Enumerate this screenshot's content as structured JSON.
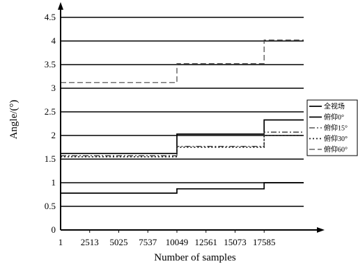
{
  "chart_data": {
    "type": "line",
    "xlabel": "Number of samples",
    "ylabel": "Angle/(°)",
    "xlim": [
      1,
      21000
    ],
    "ylim": [
      0,
      4.5
    ],
    "x_ticks": [
      1,
      2513,
      5025,
      7537,
      10049,
      12561,
      15073,
      17585
    ],
    "x_tick_labels": [
      "1",
      "2513",
      "5025",
      "7537",
      "10049",
      "12561",
      "15073",
      "17585"
    ],
    "y_ticks": [
      0,
      0.5,
      1,
      1.5,
      2,
      2.5,
      3,
      3.5,
      4,
      4.5
    ],
    "y_tick_labels": [
      "0",
      "0.5",
      "1",
      "1.5",
      "2",
      "2.5",
      "3",
      "3.5",
      "4",
      "4.5"
    ],
    "grid": "horizontal",
    "legend_position": "right",
    "series": [
      {
        "name": "全视场",
        "style": "solid",
        "x": [
          1,
          10049,
          10049,
          17585,
          17585,
          21000
        ],
        "y": [
          0.78,
          0.78,
          0.87,
          0.87,
          1.0,
          1.0
        ]
      },
      {
        "name": "俯仰0°",
        "style": "solid",
        "x": [
          1,
          10049,
          10049,
          17585,
          17585,
          21000
        ],
        "y": [
          1.62,
          1.62,
          2.03,
          2.03,
          2.33,
          2.33
        ]
      },
      {
        "name": "俯仰15°",
        "style": "dashdot",
        "x": [
          1,
          10049,
          10049,
          17585,
          17585,
          21000
        ],
        "y": [
          1.57,
          1.57,
          1.77,
          1.77,
          2.07,
          2.07
        ]
      },
      {
        "name": "俯仰30°",
        "style": "dotted",
        "x": [
          1,
          10049,
          10049,
          17585,
          17585,
          21000
        ],
        "y": [
          1.55,
          1.55,
          1.75,
          1.75,
          2.0,
          2.0
        ]
      },
      {
        "name": "俯仰60°",
        "style": "dashed",
        "x": [
          1,
          10049,
          10049,
          17585,
          17585,
          21000
        ],
        "y": [
          3.12,
          3.12,
          3.52,
          3.52,
          4.02,
          4.02
        ]
      }
    ]
  }
}
